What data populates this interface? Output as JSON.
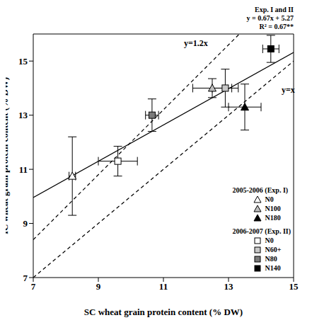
{
  "chart_data": {
    "type": "scatter",
    "xlabel": "SC wheat grain protein content (% DW)",
    "ylabel": "IC wheat grain protein content (% DW)",
    "xlim": [
      7,
      15
    ],
    "ylim": [
      7,
      16
    ],
    "xticks": [
      7,
      9,
      11,
      13,
      15
    ],
    "yticks": [
      7,
      9,
      11,
      13,
      15
    ],
    "legend": "lower right",
    "series": [
      {
        "name": "N0",
        "group": "2005-2006 (Exp. I)",
        "marker": "triangle",
        "color": "#ffffff",
        "x": [
          8.2
        ],
        "y": [
          10.75
        ],
        "xerr": [
          0.1
        ],
        "yerr": [
          1.45
        ]
      },
      {
        "name": "N100",
        "group": "2005-2006 (Exp. I)",
        "marker": "triangle",
        "color": "#bdbdbd",
        "x": [
          12.5
        ],
        "y": [
          14.0
        ],
        "xerr": [
          0.6
        ],
        "yerr": [
          0.35
        ]
      },
      {
        "name": "N180",
        "group": "2005-2006 (Exp. I)",
        "marker": "triangle",
        "color": "#000000",
        "x": [
          13.5
        ],
        "y": [
          13.3
        ],
        "xerr": [
          0.5
        ],
        "yerr": [
          0.85
        ]
      },
      {
        "name": "N0",
        "group": "2006-2007 (Exp. II)",
        "marker": "square",
        "color": "#ffffff",
        "x": [
          9.6
        ],
        "y": [
          11.3
        ],
        "xerr": [
          0.6
        ],
        "yerr": [
          0.55
        ]
      },
      {
        "name": "N60+",
        "group": "2006-2007 (Exp. II)",
        "marker": "square",
        "color": "#c8c8c8",
        "x": [
          12.9
        ],
        "y": [
          14.0
        ],
        "xerr": [
          0.4
        ],
        "yerr": [
          0.7
        ]
      },
      {
        "name": "N80",
        "group": "2006-2007 (Exp. II)",
        "marker": "square",
        "color": "#7a7a7a",
        "x": [
          10.65
        ],
        "y": [
          13.0
        ],
        "xerr": [
          0.2
        ],
        "yerr": [
          0.6
        ]
      },
      {
        "name": "N140",
        "group": "2006-2007 (Exp. II)",
        "marker": "square",
        "color": "#000000",
        "x": [
          14.3
        ],
        "y": [
          15.45
        ],
        "xerr": [
          0.25
        ],
        "yerr": [
          0.5
        ]
      }
    ],
    "lines": [
      {
        "label": [
          "y=1.2x"
        ],
        "slope": 1.2,
        "intercept": 0,
        "line_style": "dashed"
      },
      {
        "label": [
          "y=x"
        ],
        "slope": 1,
        "intercept": 0,
        "line_style": "dashed"
      },
      {
        "label": [
          "Exp. I and II",
          "y = 0.67x + 5.27",
          "R² = 0.67**"
        ],
        "slope": 0.67,
        "intercept": 5.27,
        "line_style": "solid"
      }
    ]
  }
}
